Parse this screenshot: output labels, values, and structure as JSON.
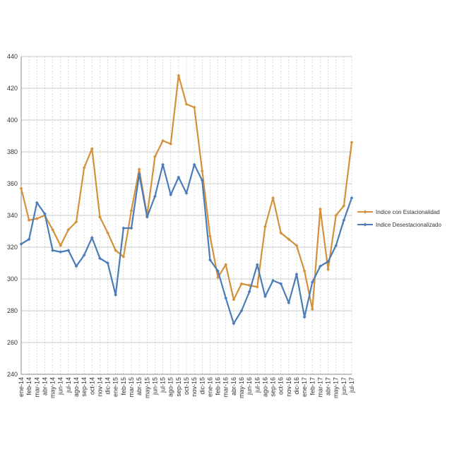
{
  "chart_data": {
    "type": "line",
    "ylim": [
      240,
      440
    ],
    "yticks": [
      240,
      260,
      280,
      300,
      320,
      340,
      360,
      380,
      400,
      420,
      440
    ],
    "grid": true,
    "legend_position": "right",
    "categories": [
      "ene-14",
      "feb-14",
      "mar-14",
      "abr-14",
      "may-14",
      "jun-14",
      "jul-14",
      "ago-14",
      "sep-14",
      "oct-14",
      "nov-14",
      "dic-14",
      "ene-15",
      "feb-15",
      "mar-15",
      "abr-15",
      "may-15",
      "jun-15",
      "jul-15",
      "ago-15",
      "sep-15",
      "oct-15",
      "nov-15",
      "dic-15",
      "ene-16",
      "feb-16",
      "mar-16",
      "abr-16",
      "may-16",
      "jun-16",
      "jul-16",
      "ago-16",
      "sep-16",
      "oct-16",
      "nov-16",
      "dic-16",
      "ene-17",
      "feb-17",
      "mar-17",
      "abr-17",
      "may-17",
      "jun-17",
      "jul-17"
    ],
    "series": [
      {
        "name": "Indice con Estacionalidad",
        "color": "#d4913a",
        "values": [
          357,
          337,
          338,
          340,
          331,
          321,
          331,
          336,
          370,
          382,
          339,
          329,
          318,
          314,
          343,
          369,
          340,
          377,
          387,
          385,
          428,
          410,
          408,
          368,
          327,
          301,
          309,
          287,
          297,
          296,
          295,
          333,
          351,
          329,
          325,
          321,
          305,
          281,
          344,
          306,
          340,
          346,
          386
        ]
      },
      {
        "name": "Indice Desestacionalizado",
        "color": "#4a7cb8",
        "values": [
          322,
          325,
          348,
          341,
          318,
          317,
          318,
          308,
          315,
          326,
          313,
          310,
          290,
          332,
          332,
          366,
          339,
          352,
          372,
          353,
          364,
          354,
          372,
          362,
          312,
          305,
          288,
          272,
          280,
          292,
          309,
          289,
          299,
          297,
          285,
          303,
          276,
          298,
          308,
          311,
          321,
          337,
          351
        ]
      }
    ]
  }
}
